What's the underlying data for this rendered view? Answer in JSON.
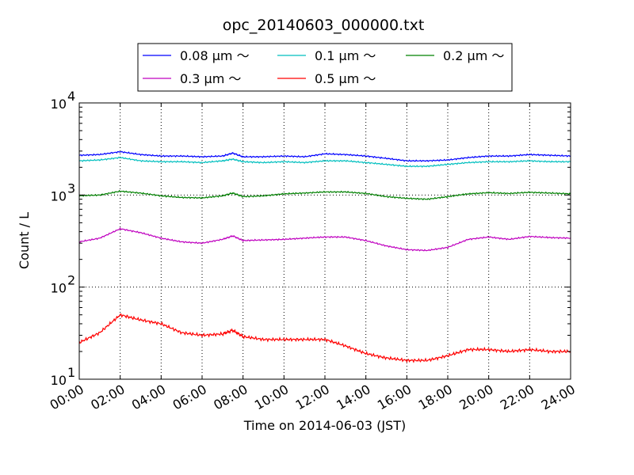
{
  "chart_data": {
    "type": "line",
    "title": "opc_20140603_000000.txt",
    "xlabel": "Time on 2014-06-03 (JST)",
    "ylabel": "Count / L",
    "x_unit": "hours",
    "xlim": [
      0,
      24
    ],
    "ylim": [
      10,
      10000
    ],
    "y_scale": "log",
    "grid": true,
    "legend_position": "top-center-outside",
    "x_tick_labels": [
      "00:00",
      "02:00",
      "04:00",
      "06:00",
      "08:00",
      "10:00",
      "12:00",
      "14:00",
      "16:00",
      "18:00",
      "20:00",
      "22:00",
      "24:00"
    ],
    "x_ticks": [
      0,
      2,
      4,
      6,
      8,
      10,
      12,
      14,
      16,
      18,
      20,
      22,
      24
    ],
    "y_ticks": [
      {
        "value": 10,
        "base": "10",
        "exp": "1"
      },
      {
        "value": 100,
        "base": "10",
        "exp": "2"
      },
      {
        "value": 1000,
        "base": "10",
        "exp": "3"
      },
      {
        "value": 10000,
        "base": "10",
        "exp": "4"
      }
    ],
    "x": [
      0,
      1,
      2,
      3,
      4,
      5,
      6,
      7,
      7.5,
      8,
      9,
      10,
      11,
      12,
      13,
      14,
      15,
      16,
      17,
      18,
      19,
      20,
      21,
      22,
      23,
      24
    ],
    "series": [
      {
        "name": "0.08 μm ～",
        "color": "#0000ff",
        "values": [
          2700,
          2750,
          2950,
          2750,
          2650,
          2650,
          2600,
          2650,
          2850,
          2600,
          2600,
          2650,
          2600,
          2800,
          2750,
          2650,
          2500,
          2350,
          2350,
          2400,
          2550,
          2650,
          2650,
          2750,
          2700,
          2650
        ]
      },
      {
        "name": "0.1 μm ～",
        "color": "#00bfbf",
        "values": [
          2350,
          2400,
          2550,
          2350,
          2300,
          2300,
          2250,
          2350,
          2450,
          2300,
          2250,
          2300,
          2250,
          2350,
          2350,
          2250,
          2150,
          2050,
          2050,
          2150,
          2250,
          2300,
          2300,
          2350,
          2300,
          2300
        ]
      },
      {
        "name": "0.2 μm ～",
        "color": "#008000",
        "values": [
          980,
          1000,
          1100,
          1050,
          980,
          940,
          930,
          980,
          1050,
          960,
          980,
          1030,
          1050,
          1080,
          1080,
          1040,
          960,
          920,
          900,
          960,
          1030,
          1060,
          1040,
          1070,
          1050,
          1030
        ]
      },
      {
        "name": "0.3 μm ～",
        "color": "#bf00bf",
        "values": [
          310,
          340,
          430,
          390,
          340,
          310,
          300,
          330,
          360,
          320,
          325,
          330,
          340,
          350,
          350,
          320,
          280,
          255,
          250,
          270,
          330,
          350,
          330,
          355,
          345,
          340
        ]
      },
      {
        "name": "0.5 μm ～",
        "color": "#ff0000",
        "values": [
          25,
          32,
          50,
          44,
          40,
          32,
          30,
          31,
          34,
          29,
          27,
          27,
          27,
          27,
          23,
          19,
          17,
          16,
          16,
          18,
          21,
          21,
          20,
          21,
          20,
          20
        ]
      }
    ]
  }
}
